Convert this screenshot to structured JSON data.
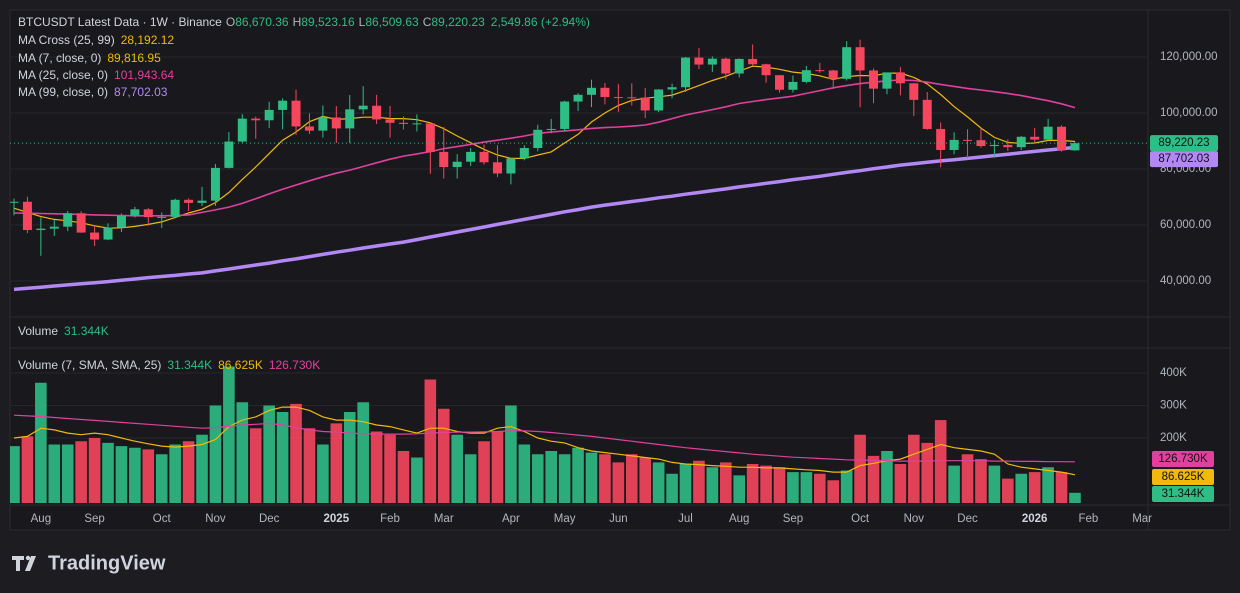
{
  "chart_data": [
    {
      "type": "candlestick",
      "header": {
        "symbol": "BTCUSDT Latest Data · 1W · Binance",
        "ohlc_labels": [
          "O",
          "H",
          "L",
          "C"
        ],
        "ohlc_values": [
          "86,670.36",
          "89,523.16",
          "86,509.63",
          "89,220.23"
        ],
        "change": "2,549.86 (+2.94%)"
      },
      "indicator": {
        "name": "MA Cross (25, 99)",
        "value": "28,192.12",
        "color": "#f0b90b"
      },
      "up_color": "#2ebd85",
      "down_color": "#f6465d",
      "ylim": [
        27143,
        136786
      ],
      "yticks": [
        {
          "value": 40000,
          "label": "40,000.00"
        },
        {
          "value": 60000,
          "label": "60,000.00"
        },
        {
          "value": 80000,
          "label": "80,000.00"
        },
        {
          "value": 100000,
          "label": "100,000.00"
        },
        {
          "value": 120000,
          "label": "120,000.00"
        }
      ],
      "grid": true,
      "open": [
        68200,
        68300,
        58200,
        58700,
        59400,
        64200,
        57300,
        54800,
        59100,
        63300,
        65600,
        62800,
        62900,
        69000,
        67900,
        68700,
        80400,
        89800,
        98000,
        97400,
        101100,
        104400,
        95200,
        93700,
        98400,
        94500,
        101300,
        102600,
        97700,
        96500,
        96100,
        96300,
        86100,
        80700,
        82600,
        86100,
        82400,
        78400,
        83800,
        87500,
        94000,
        94300,
        104100,
        106500,
        109000,
        105700,
        105600,
        105500,
        100900,
        108400,
        109200,
        119800,
        117300,
        119400,
        114100,
        119300,
        117400,
        113500,
        108300,
        111100,
        115300,
        115200,
        112200,
        123500,
        115200,
        108700,
        114500,
        110600,
        104700,
        94300,
        86800,
        90400,
        90300,
        88200,
        88600,
        87800,
        91500,
        90500,
        95100,
        86670.36
      ],
      "high": [
        69400,
        70100,
        62700,
        61800,
        65000,
        64900,
        59800,
        60600,
        64100,
        66500,
        66000,
        64500,
        69400,
        69500,
        73600,
        81800,
        93200,
        99600,
        98700,
        104000,
        105200,
        108400,
        99900,
        102700,
        102500,
        106400,
        109600,
        106500,
        102500,
        98800,
        99500,
        96500,
        95000,
        85300,
        87500,
        88800,
        88500,
        84000,
        88500,
        95800,
        97900,
        104400,
        107100,
        111900,
        110700,
        110400,
        110600,
        108900,
        108500,
        110500,
        120000,
        123200,
        120200,
        119800,
        119500,
        124500,
        117600,
        113600,
        113400,
        116800,
        117900,
        115400,
        125700,
        126200,
        115900,
        114000,
        116400,
        110700,
        107500,
        96600,
        93100,
        94200,
        94600,
        90400,
        90600,
        91800,
        94700,
        97900,
        95600,
        89523.16
      ],
      "low": [
        63500,
        57100,
        49000,
        56100,
        57800,
        57200,
        52500,
        54600,
        57500,
        62700,
        59800,
        58900,
        62400,
        65000,
        66800,
        66800,
        80200,
        89400,
        90800,
        94600,
        94200,
        92200,
        92500,
        91200,
        89300,
        89300,
        99500,
        96100,
        91200,
        94100,
        93400,
        78300,
        76600,
        76600,
        81100,
        81600,
        77100,
        74500,
        83100,
        86300,
        92800,
        93400,
        100700,
        102100,
        103100,
        100400,
        102700,
        98200,
        100300,
        105300,
        107500,
        115700,
        114700,
        112000,
        112700,
        116800,
        110800,
        107300,
        107300,
        110600,
        114400,
        108600,
        111600,
        102000,
        103500,
        106700,
        106300,
        98900,
        94000,
        80600,
        85300,
        83800,
        87600,
        84400,
        86500,
        86800,
        89300,
        90300,
        86200,
        86509.63
      ],
      "close": [
        68300,
        58200,
        58700,
        59400,
        64200,
        57300,
        54800,
        59100,
        63300,
        65600,
        62800,
        62900,
        69000,
        67900,
        68700,
        80400,
        89800,
        98000,
        97400,
        101100,
        104400,
        95200,
        93700,
        98400,
        94500,
        101300,
        102600,
        97700,
        96500,
        96100,
        96300,
        86100,
        80700,
        82600,
        86100,
        82400,
        78400,
        83800,
        87500,
        94000,
        94300,
        104100,
        106500,
        109000,
        105700,
        105600,
        105500,
        100900,
        108400,
        109200,
        119800,
        117300,
        119400,
        114100,
        119300,
        117400,
        113500,
        108300,
        111100,
        115300,
        115200,
        112200,
        123500,
        115200,
        108700,
        114500,
        110600,
        104700,
        94300,
        86800,
        90400,
        90300,
        88200,
        88600,
        87800,
        91500,
        90500,
        95100,
        86670.36,
        89220.23
      ],
      "series": [
        {
          "name": "MA (7, close, 0)",
          "color": "#f0b90b",
          "last_value_label": "89,816.95",
          "values": [
            66000,
            64500,
            63000,
            62000,
            61500,
            60800,
            59700,
            58900,
            59000,
            59500,
            60200,
            61100,
            62700,
            64300,
            65600,
            68000,
            71600,
            76300,
            80700,
            85500,
            90300,
            93200,
            96900,
            98800,
            97700,
            98000,
            98500,
            98500,
            98000,
            98000,
            97600,
            96500,
            94400,
            91800,
            89400,
            87000,
            85000,
            83800,
            83800,
            85000,
            86100,
            89300,
            92400,
            96800,
            100000,
            102700,
            104500,
            105300,
            105800,
            106400,
            108000,
            109800,
            111600,
            113100,
            115000,
            116700,
            116400,
            115600,
            114600,
            114100,
            113300,
            112000,
            113000,
            113400,
            113300,
            114200,
            114300,
            112700,
            110400,
            106600,
            102300,
            98600,
            94600,
            91300,
            89500,
            89100,
            89300,
            90200,
            90200,
            89816.95
          ]
        },
        {
          "name": "MA (25, close, 0)",
          "color": "#e0409e",
          "last_value_label": "101,943.64",
          "values": [
            64300,
            64200,
            64100,
            64000,
            63900,
            63800,
            63600,
            63500,
            63400,
            63300,
            63300,
            63300,
            63400,
            63600,
            64500,
            65400,
            66400,
            67700,
            69400,
            71100,
            72800,
            74300,
            75800,
            77200,
            78500,
            79600,
            80900,
            82200,
            83500,
            84600,
            85400,
            86200,
            87300,
            88000,
            88800,
            89600,
            90300,
            91000,
            91800,
            92700,
            93200,
            93600,
            94000,
            94500,
            94800,
            95000,
            95300,
            95700,
            96700,
            98000,
            99300,
            100200,
            101200,
            102200,
            103400,
            104100,
            104800,
            105400,
            106000,
            107000,
            108000,
            109000,
            109800,
            110500,
            111000,
            111500,
            111800,
            111600,
            111000,
            110200,
            109500,
            108800,
            108200,
            107600,
            107000,
            106200,
            105300,
            104400,
            103300,
            101943.64
          ]
        },
        {
          "name": "MA (99, close, 0)",
          "color": "#b388f5",
          "last_value_label": "87,702.03",
          "values": [
            37000,
            37400,
            37800,
            38200,
            38600,
            39000,
            39400,
            39800,
            40300,
            40700,
            41200,
            41600,
            42000,
            42500,
            42900,
            43600,
            44300,
            45000,
            45700,
            46400,
            47200,
            47900,
            48700,
            49500,
            50300,
            51000,
            51800,
            52500,
            53200,
            53900,
            54800,
            55700,
            56600,
            57500,
            58400,
            59300,
            60200,
            61100,
            62000,
            62900,
            63800,
            64700,
            65500,
            66400,
            67100,
            67700,
            68400,
            69000,
            69700,
            70300,
            71000,
            71600,
            72300,
            72900,
            73600,
            74200,
            74900,
            75500,
            76200,
            76800,
            77400,
            78100,
            78800,
            79400,
            80100,
            80700,
            81400,
            81900,
            82400,
            82900,
            83300,
            83800,
            84300,
            84800,
            85300,
            85800,
            86300,
            86800,
            87200,
            87702.03
          ]
        }
      ]
    },
    {
      "type": "bar",
      "title": "Volume",
      "last_value_label": "31.344K",
      "indicator": "Volume (7, SMA, SMA, 25)",
      "ylim": [
        0,
        464600
      ],
      "yticks": [
        {
          "value": 200000,
          "label": "200K"
        },
        {
          "value": 300000,
          "label": "300K"
        },
        {
          "value": 400000,
          "label": "400K"
        }
      ],
      "categories": [
        null,
        null,
        "Aug",
        null,
        null,
        null,
        "Sep",
        null,
        null,
        null,
        null,
        "Oct",
        null,
        null,
        null,
        "Nov",
        null,
        null,
        null,
        "Dec",
        null,
        null,
        null,
        null,
        "2025",
        null,
        null,
        null,
        "Feb",
        null,
        null,
        null,
        "Mar",
        null,
        null,
        null,
        null,
        "Apr",
        null,
        null,
        null,
        "May",
        null,
        null,
        null,
        "Jun",
        null,
        null,
        null,
        null,
        "Jul",
        null,
        null,
        null,
        "Aug",
        null,
        null,
        null,
        "Sep",
        null,
        null,
        null,
        null,
        "Oct",
        null,
        null,
        null,
        "Nov",
        null,
        null,
        null,
        "Dec",
        null,
        null,
        null,
        null,
        "2026",
        null,
        null,
        null,
        "Feb",
        null,
        null,
        null,
        "Mar"
      ],
      "values": [
        175000,
        205000,
        370000,
        180000,
        180000,
        190000,
        200000,
        185000,
        175000,
        170000,
        165000,
        150000,
        180000,
        190000,
        210000,
        300000,
        420000,
        310000,
        230000,
        300000,
        280000,
        305000,
        230000,
        180000,
        245000,
        280000,
        310000,
        220000,
        210000,
        160000,
        140000,
        380000,
        290000,
        210000,
        150000,
        190000,
        220000,
        300000,
        180000,
        150000,
        160000,
        150000,
        170000,
        155000,
        150000,
        125000,
        150000,
        140000,
        125000,
        90000,
        120000,
        130000,
        110000,
        125000,
        85000,
        120000,
        115000,
        110000,
        95000,
        95000,
        90000,
        70000,
        100000,
        210000,
        145000,
        160000,
        120000,
        210000,
        185000,
        255000,
        115000,
        150000,
        135000,
        115000,
        75000,
        90000,
        95000,
        110000,
        95000,
        31344,
        null,
        null,
        null,
        null,
        null
      ],
      "series": [
        {
          "color": "#f0b90b",
          "last_value_label": "86.625K",
          "values": [
            200000,
            205000,
            230000,
            225000,
            215000,
            210000,
            215000,
            210000,
            200000,
            190000,
            182000,
            175000,
            172000,
            175000,
            180000,
            195000,
            235000,
            255000,
            265000,
            285000,
            295000,
            295000,
            285000,
            265000,
            255000,
            255000,
            250000,
            240000,
            235000,
            225000,
            215000,
            230000,
            230000,
            220000,
            215000,
            215000,
            230000,
            235000,
            220000,
            200000,
            190000,
            185000,
            170000,
            160000,
            155000,
            150000,
            145000,
            140000,
            135000,
            125000,
            120000,
            118000,
            115000,
            113000,
            110000,
            110000,
            108000,
            108000,
            105000,
            102000,
            100000,
            95000,
            95000,
            115000,
            122000,
            130000,
            135000,
            150000,
            165000,
            180000,
            170000,
            165000,
            160000,
            150000,
            120000,
            110000,
            105000,
            100000,
            95000,
            86625,
            null,
            null,
            null,
            null,
            null
          ]
        },
        {
          "color": "#e0409e",
          "last_value_label": "126.730K",
          "values": [
            270000,
            268000,
            266000,
            263000,
            260000,
            257000,
            254000,
            251000,
            248000,
            245000,
            242000,
            239000,
            236000,
            233000,
            230000,
            232000,
            236000,
            240000,
            242000,
            245000,
            240000,
            232000,
            225000,
            220000,
            218000,
            215000,
            213000,
            212000,
            212000,
            212000,
            213000,
            215000,
            217000,
            218000,
            218000,
            219000,
            220000,
            222000,
            222000,
            220000,
            217000,
            213000,
            209000,
            205000,
            200000,
            195000,
            190000,
            185000,
            180000,
            175000,
            170000,
            166000,
            162000,
            158000,
            154000,
            150000,
            147000,
            144000,
            141000,
            139000,
            137000,
            135000,
            133000,
            132000,
            131000,
            130000,
            129000,
            129000,
            129000,
            130000,
            130000,
            130000,
            130000,
            129000,
            129000,
            128000,
            128000,
            127000,
            127000,
            126730,
            null,
            null,
            null,
            null,
            null
          ]
        }
      ]
    }
  ],
  "branding": "TradingView"
}
